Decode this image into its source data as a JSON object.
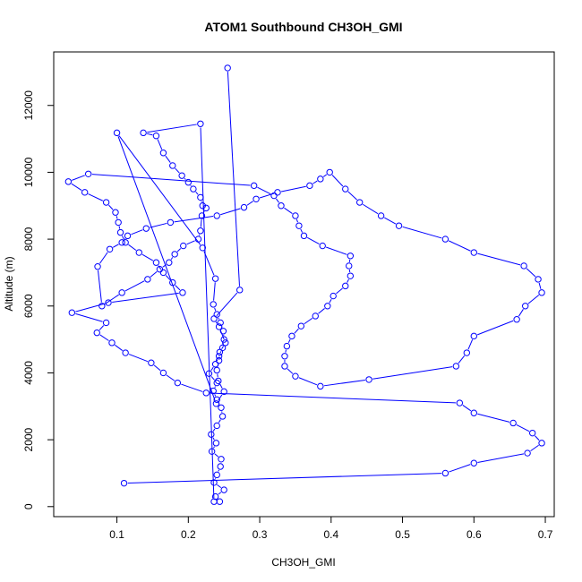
{
  "chart_data": {
    "type": "line",
    "title": "ATOM1 Southbound CH3OH_GMI",
    "xlabel": "CH3OH_GMI",
    "ylabel": "Altitude (m)",
    "xlim": [
      0.0115,
      0.7125
    ],
    "ylim": [
      -300,
      13600
    ],
    "x_ticks": [
      0.1,
      0.2,
      0.3,
      0.4,
      0.5,
      0.6,
      0.7
    ],
    "x_tick_labels": [
      "0.1",
      "0.2",
      "0.3",
      "0.4",
      "0.5",
      "0.6",
      "0.7"
    ],
    "y_ticks": [
      0,
      2000,
      4000,
      6000,
      8000,
      10000,
      12000
    ],
    "y_tick_labels": [
      "0",
      "2000",
      "4000",
      "6000",
      "8000",
      "10000",
      "12000"
    ],
    "grid": false,
    "colors": {
      "series": "#0000ff",
      "axis": "#000000"
    },
    "series": [
      {
        "marker": "open-circle",
        "x": [
          0.255,
          0.272,
          0.236,
          0.243,
          0.252,
          0.244,
          0.243,
          0.24,
          0.242,
          0.25,
          0.239,
          0.1,
          0.22,
          0.238,
          0.235,
          0.24,
          0.245,
          0.249,
          0.25,
          0.248,
          0.243,
          0.238,
          0.229,
          0.24,
          0.235,
          0.24,
          0.246,
          0.248,
          0.24,
          0.232,
          0.239,
          0.233,
          0.246,
          0.245,
          0.24,
          0.236,
          0.25,
          0.238,
          0.244,
          0.236,
          0.217,
          0.137,
          0.155,
          0.165,
          0.178,
          0.191,
          0.2,
          0.207,
          0.217,
          0.22,
          0.225,
          0.219,
          0.217,
          0.214,
          0.193,
          0.181,
          0.173,
          0.16,
          0.143,
          0.107,
          0.079,
          0.073,
          0.09,
          0.107,
          0.115,
          0.141,
          0.175,
          0.24,
          0.278,
          0.295,
          0.325,
          0.37,
          0.385,
          0.398,
          0.42,
          0.44,
          0.47,
          0.495,
          0.56,
          0.6,
          0.67,
          0.69,
          0.695,
          0.672,
          0.66,
          0.6,
          0.59,
          0.575,
          0.453,
          0.385,
          0.35,
          0.335,
          0.335,
          0.338,
          0.345,
          0.358,
          0.378,
          0.395,
          0.403,
          0.42,
          0.427,
          0.425,
          0.427,
          0.388,
          0.362,
          0.355,
          0.35,
          0.33,
          0.32,
          0.292,
          0.06,
          0.032,
          0.055,
          0.085,
          0.098,
          0.102,
          0.105,
          0.112,
          0.131,
          0.155,
          0.165,
          0.178,
          0.192,
          0.088,
          0.037,
          0.085,
          0.072,
          0.093,
          0.112,
          0.148,
          0.165,
          0.185,
          0.225,
          0.58,
          0.6,
          0.655,
          0.682,
          0.695,
          0.675,
          0.6,
          0.56,
          0.11
        ],
        "y": [
          13120,
          6480,
          5620,
          5380,
          4900,
          4620,
          4370,
          4080,
          3760,
          3440,
          3080,
          11180,
          7740,
          6820,
          6050,
          5750,
          5500,
          5250,
          5000,
          4750,
          4500,
          4260,
          3980,
          3700,
          3460,
          3200,
          2960,
          2700,
          2420,
          2160,
          1900,
          1650,
          1420,
          1200,
          950,
          720,
          500,
          300,
          150,
          150,
          11450,
          11180,
          11090,
          10580,
          10200,
          9900,
          9700,
          9500,
          9250,
          9000,
          8930,
          8700,
          8250,
          8000,
          7800,
          7550,
          7300,
          7100,
          6800,
          6400,
          6000,
          7180,
          7700,
          7900,
          8100,
          8320,
          8500,
          8700,
          8950,
          9200,
          9400,
          9600,
          9800,
          10000,
          9500,
          9100,
          8700,
          8400,
          8000,
          7600,
          7200,
          6800,
          6400,
          6000,
          5600,
          5100,
          4600,
          4200,
          3800,
          3600,
          3900,
          4200,
          4500,
          4800,
          5100,
          5400,
          5700,
          6000,
          6300,
          6600,
          6900,
          7200,
          7500,
          7800,
          8100,
          8400,
          8700,
          9000,
          9300,
          9600,
          9950,
          9720,
          9400,
          9100,
          8800,
          8500,
          8200,
          7900,
          7600,
          7300,
          7000,
          6700,
          6400,
          6100,
          5800,
          5500,
          5200,
          4900,
          4600,
          4300,
          4000,
          3700,
          3400,
          3100,
          2800,
          2500,
          2200,
          1900,
          1600,
          1300,
          1000,
          700
        ]
      }
    ]
  }
}
